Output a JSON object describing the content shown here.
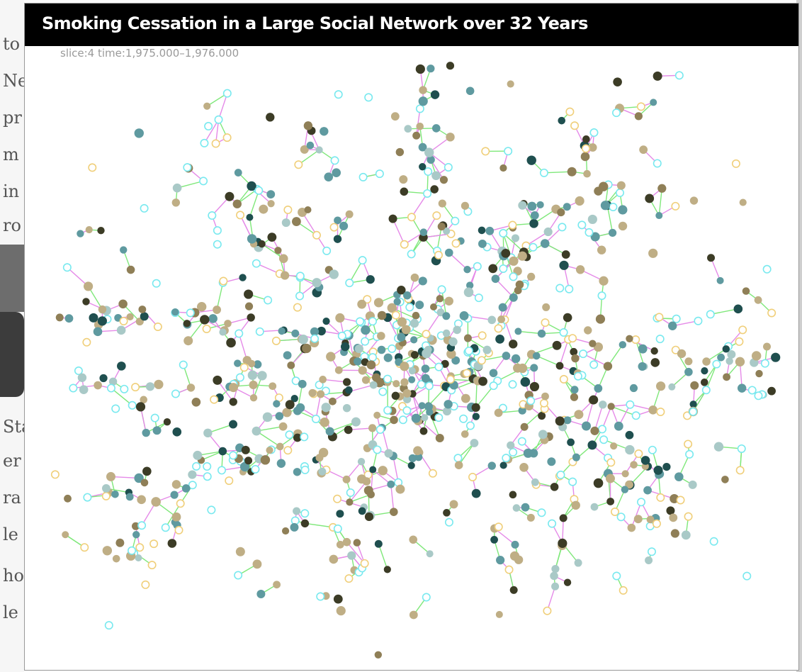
{
  "figure": {
    "title": "Smoking Cessation in a Large Social Network over 32 Years",
    "slice_label": "slice:4  time:1,975.000–1,976.000"
  },
  "background_text": [
    "to",
    "Ne",
    "pr",
    "m",
    "in",
    "ro",
    "Sta",
    "er",
    "ra",
    "le",
    "ho",
    "le"
  ],
  "network": {
    "node_colors": {
      "smoker_heavy": "#3c3c26",
      "smoker_brown": "#8f7f57",
      "smoker_tan": "#bfae85",
      "nonsmoker_teal": "#5f9aa0",
      "nonsmoker_dark_teal": "#1f4f4f",
      "nonsmoker_light": "#a9c9c7",
      "open_cyan": "#79e9ef",
      "open_yellow": "#f0cf7a"
    },
    "edge_colors": {
      "spouse": "#e58ae8",
      "friend": "#7fe87a"
    }
  }
}
